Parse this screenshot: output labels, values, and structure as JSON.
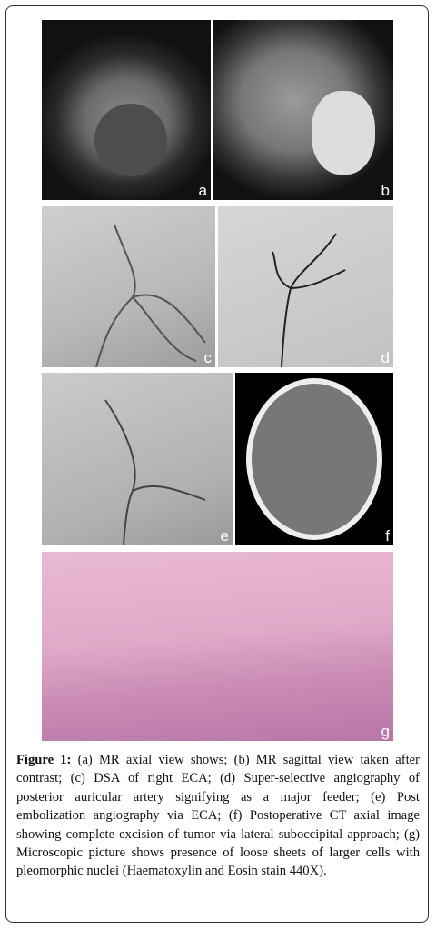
{
  "figure": {
    "panels": [
      "a",
      "b",
      "c",
      "d",
      "e",
      "f",
      "g"
    ],
    "label": "Figure 1:",
    "caption": "(a) MR axial view shows; (b) MR sagittal view taken after contrast; (c) DSA of right ECA; (d) Super-selective angiography of posterior auricular artery signifying as a major feeder; (e) Post embolization angiography via ECA; (f) Postoperative CT axial image showing complete excision of tumor via lateral suboccipital approach; (g) Microscopic picture shows presence of loose sheets of larger cells with pleomorphic nuclei (Haematoxylin and Eosin stain 440X)."
  }
}
